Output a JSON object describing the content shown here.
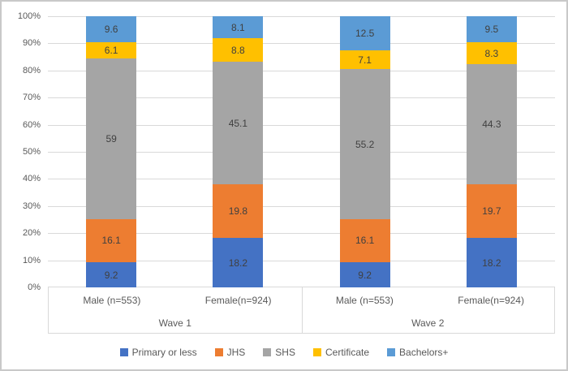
{
  "chart_data": {
    "type": "bar",
    "subtype": "stacked-100-percent",
    "orientation": "vertical",
    "grid": true,
    "legend_position": "bottom",
    "style": {
      "grid_color": "#d9d9d9",
      "axis_text_color": "#595959",
      "data_label_color": "#404040",
      "frame_border_color": "#c9c9c9",
      "background": "#ffffff"
    },
    "y_axis": {
      "min": 0,
      "max": 100,
      "step": 10,
      "unit": "%",
      "tick_labels": [
        "100%",
        "90%",
        "80%",
        "70%",
        "60%",
        "50%",
        "40%",
        "30%",
        "20%",
        "10%",
        "0%"
      ]
    },
    "x_axis": {
      "categories": [
        "Male (n=553)",
        "Female(n=924)",
        "Male (n=553)",
        "Female(n=924)"
      ],
      "groups": [
        {
          "label": "Wave 1"
        },
        {
          "label": "Wave 2"
        }
      ]
    },
    "series": [
      {
        "name": "Primary or less",
        "color": "#4472C4",
        "values": [
          9.2,
          18.2,
          9.2,
          18.2
        ]
      },
      {
        "name": "JHS",
        "color": "#ED7D31",
        "values": [
          16.1,
          19.8,
          16.1,
          19.7
        ]
      },
      {
        "name": "SHS",
        "color": "#A5A5A5",
        "values": [
          59,
          45.1,
          55.2,
          44.3
        ]
      },
      {
        "name": "Certificate",
        "color": "#FFC000",
        "values": [
          6.1,
          8.8,
          7.1,
          8.3
        ]
      },
      {
        "name": "Bachelors+",
        "color": "#5B9BD5",
        "values": [
          9.6,
          8.1,
          12.5,
          9.5
        ]
      }
    ]
  }
}
